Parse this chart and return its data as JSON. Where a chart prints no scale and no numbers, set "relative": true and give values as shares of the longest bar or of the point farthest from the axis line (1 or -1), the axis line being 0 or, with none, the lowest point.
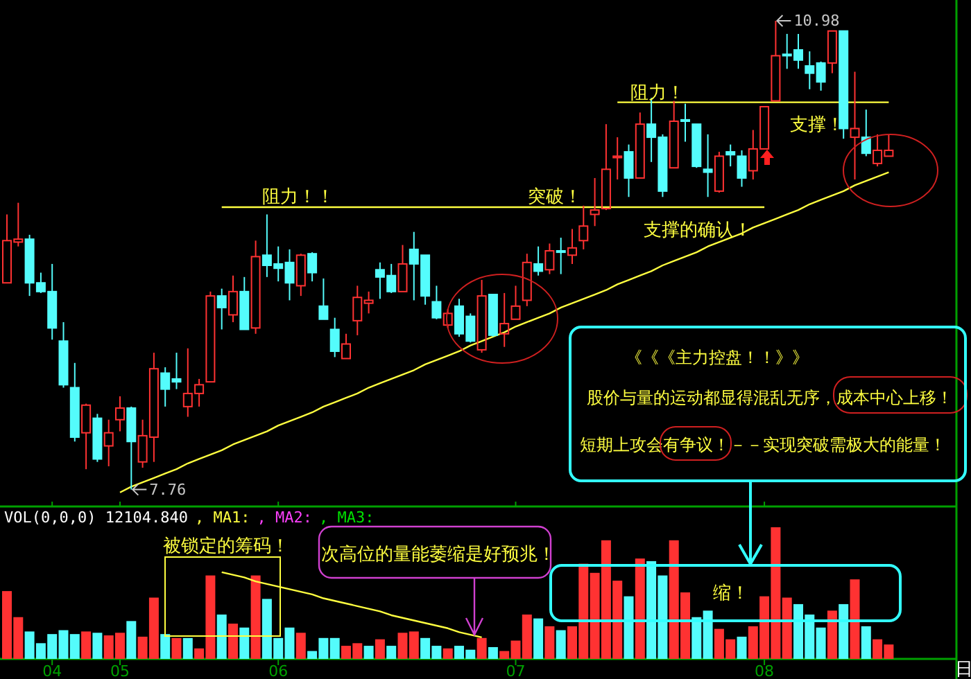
{
  "chart_data": [
    {
      "type": "candlestick",
      "tick_labels": false,
      "categories": [
        null,
        null,
        null,
        null,
        "04",
        null,
        null,
        null,
        null,
        null,
        "05",
        null,
        null,
        null,
        null,
        null,
        null,
        null,
        null,
        null,
        null,
        null,
        null,
        null,
        "06",
        null,
        null,
        null,
        null,
        null,
        null,
        null,
        null,
        null,
        null,
        null,
        null,
        null,
        null,
        null,
        null,
        null,
        null,
        null,
        null,
        "07",
        null,
        null,
        null,
        null,
        null,
        null,
        null,
        null,
        null,
        null,
        null,
        null,
        null,
        null,
        null,
        null,
        null,
        null,
        null,
        null,
        null,
        "08",
        null,
        null,
        null,
        null,
        null,
        null,
        null,
        null,
        null,
        null,
        null
      ],
      "ohlc": [
        [
          9.18,
          9.65,
          9.18,
          9.47
        ],
        [
          9.46,
          9.73,
          9.43,
          9.48
        ],
        [
          9.48,
          9.51,
          9.09,
          9.18
        ],
        [
          9.18,
          9.25,
          9.11,
          9.12
        ],
        [
          9.12,
          9.31,
          8.79,
          8.87
        ],
        [
          8.78,
          8.91,
          8.46,
          8.48
        ],
        [
          8.46,
          8.63,
          8.09,
          8.12
        ],
        [
          8.15,
          8.35,
          7.9,
          8.34
        ],
        [
          8.25,
          8.28,
          7.95,
          7.97
        ],
        [
          8.06,
          8.24,
          7.92,
          8.15
        ],
        [
          8.24,
          8.4,
          8.16,
          8.32
        ],
        [
          8.32,
          8.33,
          7.76,
          8.09
        ],
        [
          7.95,
          8.24,
          7.91,
          8.13
        ],
        [
          8.12,
          8.7,
          7.95,
          8.59
        ],
        [
          8.56,
          8.6,
          8.33,
          8.45
        ],
        [
          8.52,
          8.7,
          8.45,
          8.5
        ],
        [
          8.33,
          8.73,
          8.26,
          8.42
        ],
        [
          8.42,
          8.52,
          8.33,
          8.48
        ],
        [
          8.5,
          9.12,
          8.5,
          9.09
        ],
        [
          9.09,
          9.14,
          8.86,
          9.01
        ],
        [
          8.96,
          9.23,
          8.91,
          9.12
        ],
        [
          9.12,
          9.22,
          8.86,
          8.86
        ],
        [
          8.87,
          9.47,
          8.83,
          9.36
        ],
        [
          9.37,
          9.65,
          9.22,
          9.3
        ],
        [
          9.31,
          9.43,
          9.19,
          9.28
        ],
        [
          9.32,
          9.41,
          9.06,
          9.18
        ],
        [
          9.16,
          9.38,
          9.09,
          9.37
        ],
        [
          9.38,
          9.39,
          9.19,
          9.25
        ],
        [
          9.02,
          9.21,
          8.93,
          8.93
        ],
        [
          8.86,
          8.94,
          8.67,
          8.71
        ],
        [
          8.66,
          8.83,
          8.66,
          8.76
        ],
        [
          8.92,
          9.16,
          8.82,
          9.08
        ],
        [
          9.04,
          9.12,
          8.97,
          9.06
        ],
        [
          9.27,
          9.32,
          9.07,
          9.22
        ],
        [
          9.23,
          9.31,
          9.11,
          9.12
        ],
        [
          9.12,
          9.44,
          9.12,
          9.31
        ],
        [
          9.41,
          9.53,
          9.06,
          9.31
        ],
        [
          9.37,
          9.37,
          9.03,
          9.09
        ],
        [
          9.05,
          9.16,
          8.93,
          8.94
        ],
        [
          8.89,
          9.0,
          8.87,
          8.97
        ],
        [
          9.02,
          9.07,
          8.81,
          8.83
        ],
        [
          8.95,
          8.97,
          8.77,
          8.78
        ],
        [
          8.72,
          9.2,
          8.7,
          9.09
        ],
        [
          9.1,
          9.1,
          8.81,
          8.82
        ],
        [
          8.83,
          9.11,
          8.74,
          8.9
        ],
        [
          8.93,
          9.16,
          8.93,
          9.02
        ],
        [
          9.06,
          9.38,
          9.02,
          9.32
        ],
        [
          9.31,
          9.43,
          9.23,
          9.26
        ],
        [
          9.27,
          9.45,
          9.24,
          9.4
        ],
        [
          9.4,
          9.49,
          9.24,
          9.39
        ],
        [
          9.37,
          9.55,
          9.31,
          9.42
        ],
        [
          9.47,
          9.71,
          9.41,
          9.57
        ],
        [
          9.65,
          9.9,
          9.57,
          9.68
        ],
        [
          9.69,
          10.27,
          9.68,
          9.96
        ],
        [
          10.04,
          10.18,
          9.89,
          10.05
        ],
        [
          10.08,
          10.13,
          9.77,
          9.9
        ],
        [
          9.9,
          10.35,
          9.9,
          10.27
        ],
        [
          10.27,
          10.45,
          10.01,
          10.18
        ],
        [
          10.18,
          10.2,
          9.77,
          9.81
        ],
        [
          9.97,
          10.43,
          9.97,
          10.29
        ],
        [
          10.3,
          10.41,
          10.15,
          10.29
        ],
        [
          10.27,
          10.27,
          9.97,
          9.98
        ],
        [
          9.96,
          10.2,
          9.77,
          9.94
        ],
        [
          9.81,
          10.08,
          9.8,
          10.05
        ],
        [
          10.08,
          10.13,
          9.98,
          10.06
        ],
        [
          10.05,
          10.09,
          9.84,
          9.9
        ],
        [
          9.95,
          10.23,
          9.89,
          10.1
        ],
        [
          10.1,
          10.39,
          10.1,
          10.39
        ],
        [
          10.43,
          10.98,
          10.43,
          10.74
        ],
        [
          10.75,
          10.89,
          10.65,
          10.74
        ],
        [
          10.78,
          10.89,
          10.65,
          10.71
        ],
        [
          10.67,
          10.77,
          10.51,
          10.62
        ],
        [
          10.69,
          10.7,
          10.5,
          10.56
        ],
        [
          10.69,
          10.91,
          10.62,
          10.91
        ],
        [
          10.91,
          10.91,
          10.17,
          10.24
        ],
        [
          10.18,
          10.63,
          9.89,
          10.24
        ],
        [
          10.18,
          10.37,
          10.05,
          10.07
        ],
        [
          10.0,
          10.2,
          9.98,
          10.09
        ],
        [
          10.05,
          10.2,
          10.05,
          10.09
        ]
      ],
      "series": [
        {
          "type": "line",
          "color": "#ffff40",
          "values": [
            null,
            null,
            null,
            null,
            null,
            null,
            null,
            null,
            null,
            null,
            null,
            null,
            null,
            null,
            null,
            null,
            null,
            null,
            null,
            9.7,
            9.7,
            9.7,
            9.7,
            9.7,
            9.7,
            9.7,
            9.7,
            9.7,
            9.7,
            9.7,
            9.7,
            9.7,
            9.7,
            9.7,
            9.7,
            9.7,
            9.7,
            9.7,
            9.7,
            9.7,
            9.7,
            9.7,
            9.7,
            9.7,
            9.7,
            9.7,
            9.7,
            9.7,
            9.7,
            9.7,
            9.7,
            9.7,
            9.7,
            9.7,
            9.7,
            9.7,
            9.7,
            9.7,
            9.7,
            9.7,
            9.7,
            9.7,
            9.7,
            9.7,
            9.7,
            9.7,
            9.7,
            9.7,
            null,
            null,
            null,
            null,
            null,
            null,
            null,
            null,
            null,
            null,
            null
          ]
        },
        {
          "type": "line",
          "color": "#ffff40",
          "values": [
            null,
            null,
            null,
            null,
            null,
            null,
            null,
            null,
            null,
            null,
            null,
            null,
            null,
            null,
            null,
            null,
            null,
            null,
            null,
            null,
            null,
            null,
            null,
            null,
            null,
            null,
            null,
            null,
            null,
            null,
            null,
            null,
            null,
            null,
            null,
            null,
            null,
            null,
            null,
            null,
            null,
            null,
            null,
            null,
            null,
            null,
            null,
            null,
            null,
            null,
            null,
            null,
            null,
            null,
            10.42,
            10.42,
            10.42,
            10.42,
            10.42,
            10.42,
            10.42,
            10.42,
            10.42,
            10.42,
            10.42,
            10.42,
            10.42,
            10.42,
            10.42,
            10.42,
            10.42,
            10.42,
            10.42,
            10.42,
            10.42,
            10.42,
            10.42,
            10.42,
            10.42
          ]
        },
        {
          "type": "line",
          "color": "#ffff40",
          "values": [
            null,
            null,
            null,
            null,
            null,
            null,
            null,
            null,
            null,
            null,
            7.74,
            7.78,
            7.81,
            7.84,
            7.87,
            7.9,
            7.94,
            7.97,
            8.0,
            8.03,
            8.07,
            8.1,
            8.13,
            8.16,
            8.2,
            8.23,
            8.26,
            8.29,
            8.33,
            8.36,
            8.39,
            8.42,
            8.46,
            8.49,
            8.52,
            8.55,
            8.58,
            8.62,
            8.65,
            8.68,
            8.71,
            8.75,
            8.78,
            8.81,
            8.84,
            8.88,
            8.91,
            8.94,
            8.97,
            9.01,
            9.04,
            9.07,
            9.1,
            9.13,
            9.17,
            9.2,
            9.23,
            9.26,
            9.3,
            9.33,
            9.36,
            9.39,
            9.43,
            9.46,
            9.49,
            9.52,
            9.56,
            9.59,
            9.62,
            9.65,
            9.68,
            9.72,
            9.75,
            9.78,
            9.81,
            9.85,
            9.88,
            9.91,
            9.94
          ]
        }
      ],
      "annotations": [
        "阻力！！",
        "突破！",
        "阻力！",
        "支撑！",
        "支撑的确认！",
        "《《《主力控盘！！》》",
        "股价与量的运动都显得混乱无序，成本中心上移！",
        "短期上攻会有争议！－－实现突破需极大的能量！",
        "10.98",
        "7.76"
      ]
    },
    {
      "type": "bar",
      "relative": true,
      "tick_labels": "x",
      "categories": [
        null,
        null,
        null,
        null,
        "04",
        null,
        null,
        null,
        null,
        null,
        "05",
        null,
        null,
        null,
        null,
        null,
        null,
        null,
        null,
        null,
        null,
        null,
        null,
        null,
        "06",
        null,
        null,
        null,
        null,
        null,
        null,
        null,
        null,
        null,
        null,
        null,
        null,
        null,
        null,
        null,
        null,
        null,
        null,
        null,
        null,
        "07",
        null,
        null,
        null,
        null,
        null,
        null,
        null,
        null,
        null,
        null,
        null,
        null,
        null,
        null,
        null,
        null,
        null,
        null,
        null,
        null,
        null,
        "08",
        null,
        null,
        null,
        null,
        null,
        null,
        null,
        null,
        null,
        null,
        null
      ],
      "series": [
        {
          "type": "bar",
          "values": [
            0.51,
            0.31,
            0.2,
            0.11,
            0.18,
            0.21,
            0.18,
            0.2,
            0.19,
            0.17,
            0.19,
            0.28,
            0.16,
            0.46,
            0.18,
            0.15,
            0.15,
            0.07,
            0.63,
            0.33,
            0.26,
            0.23,
            0.63,
            0.45,
            0.15,
            0.23,
            0.19,
            0.05,
            0.15,
            0.15,
            0.09,
            0.11,
            0.09,
            0.14,
            0.09,
            0.19,
            0.2,
            0.15,
            0.09,
            0.07,
            0.09,
            0.06,
            0.15,
            0.08,
            0.05,
            0.13,
            0.33,
            0.3,
            0.24,
            0.21,
            0.24,
            0.72,
            0.65,
            0.9,
            0.59,
            0.47,
            0.76,
            0.74,
            0.63,
            0.9,
            0.5,
            0.31,
            0.36,
            0.22,
            0.14,
            0.16,
            0.24,
            0.47,
            1,
            0.46,
            0.41,
            0.33,
            0.23,
            0.36,
            0.41,
            0.6,
            0.24,
            0.14,
            0.1
          ],
          "colors": [
            "#ff3232",
            "#ff3232",
            "#54fcfc",
            "#54fcfc",
            "#54fcfc",
            "#54fcfc",
            "#54fcfc",
            "#ff3232",
            "#54fcfc",
            "#ff3232",
            "#ff3232",
            "#54fcfc",
            "#ff3232",
            "#ff3232",
            "#54fcfc",
            "#ff3232",
            "#54fcfc",
            "#ff3232",
            "#ff3232",
            "#54fcfc",
            "#ff3232",
            "#54fcfc",
            "#ff3232",
            "#54fcfc",
            "#54fcfc",
            "#54fcfc",
            "#ff3232",
            "#54fcfc",
            "#54fcfc",
            "#54fcfc",
            "#ff3232",
            "#ff3232",
            "#54fcfc",
            "#ff3232",
            "#54fcfc",
            "#ff3232",
            "#ff3232",
            "#54fcfc",
            "#54fcfc",
            "#ff3232",
            "#54fcfc",
            "#54fcfc",
            "#ff3232",
            "#54fcfc",
            "#ff3232",
            "#ff3232",
            "#ff3232",
            "#54fcfc",
            "#ff3232",
            "#54fcfc",
            "#ff3232",
            "#ff3232",
            "#ff3232",
            "#ff3232",
            "#ff3232",
            "#54fcfc",
            "#ff3232",
            "#54fcfc",
            "#54fcfc",
            "#ff3232",
            "#ff3232",
            "#54fcfc",
            "#54fcfc",
            "#ff3232",
            "#ff3232",
            "#54fcfc",
            "#ff3232",
            "#ff3232",
            "#ff3232",
            "#ff3232",
            "#54fcfc",
            "#54fcfc",
            "#54fcfc",
            "#ff3232",
            "#54fcfc",
            "#ff3232",
            "#54fcfc",
            "#ff3232",
            "#ff3232"
          ]
        },
        {
          "type": "line",
          "color": "#ffff40",
          "values": [
            null,
            null,
            null,
            null,
            null,
            null,
            null,
            null,
            null,
            null,
            null,
            null,
            null,
            null,
            null,
            null,
            null,
            null,
            null,
            0.66,
            0.64,
            0.62,
            0.59,
            0.57,
            0.55,
            0.53,
            0.51,
            0.49,
            0.46,
            0.44,
            0.42,
            0.4,
            0.38,
            0.36,
            0.33,
            0.31,
            0.29,
            0.27,
            0.25,
            0.23,
            0.2,
            0.18,
            0.16,
            null,
            null,
            null,
            null,
            null,
            null,
            null,
            null,
            null,
            null,
            null,
            null,
            null,
            null,
            null,
            null,
            null,
            null,
            null,
            null,
            null,
            null,
            null,
            null,
            null,
            null,
            null,
            null,
            null,
            null,
            null,
            null,
            null,
            null,
            null,
            null
          ]
        }
      ],
      "annotations": [
        "VOL(0,0,0) 12104.840",
        ", MA1:",
        ", MA2:",
        ", MA3:",
        "被锁定的筹码！",
        "次高位的量能萎缩是好预兆！",
        "缩！",
        "日"
      ]
    }
  ]
}
